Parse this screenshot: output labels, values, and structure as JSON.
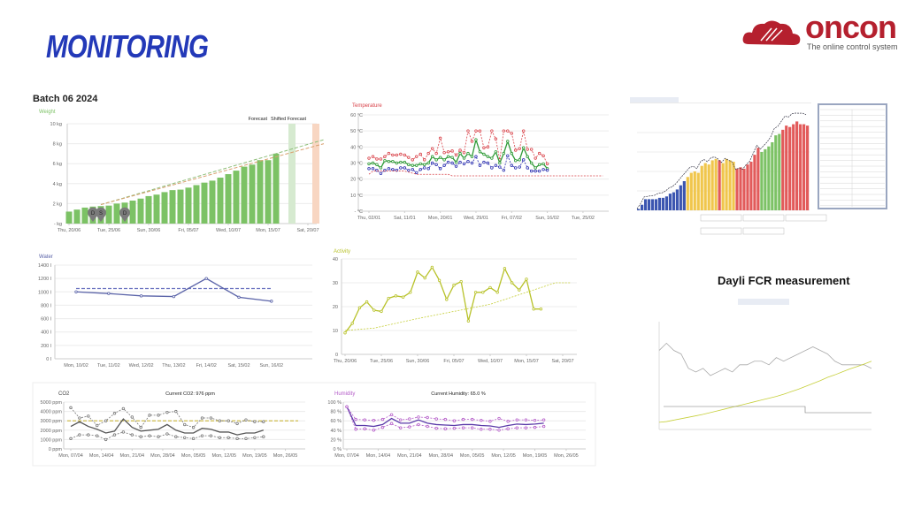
{
  "header": {
    "title": "MONITORING",
    "logo_text": "oncon",
    "logo_tagline": "The online control system",
    "brand_color": "#b5202e",
    "title_color": "#2339b8"
  },
  "batch_label": "Batch 06 2024",
  "fcr_heading": "Dayli FCR measurement",
  "chart_data": [
    {
      "id": "weight",
      "type": "bar",
      "title": "Weight",
      "ylim": [
        0,
        10
      ],
      "y_ticks": [
        "- kg",
        "2 kg",
        "4 kg",
        "6 kg",
        "8 kg",
        "10 kg"
      ],
      "x_ticks": [
        "Thu, 20/06",
        "Tue, 25/06",
        "Sun, 30/06",
        "Fri, 05/07",
        "Wed, 10/07",
        "Mon, 15/07",
        "Sat, 20/07"
      ],
      "x": [
        "20/06",
        "21/06",
        "22/06",
        "23/06",
        "24/06",
        "25/06",
        "26/06",
        "27/06",
        "28/06",
        "29/06",
        "30/06",
        "01/07",
        "02/07",
        "03/07",
        "04/07",
        "05/07",
        "06/07",
        "07/07",
        "08/07",
        "09/07",
        "10/07",
        "11/07",
        "12/07",
        "13/07",
        "14/07",
        "15/07",
        "16/07"
      ],
      "values": [
        1.2,
        1.4,
        1.6,
        1.7,
        1.75,
        1.8,
        2.0,
        2.1,
        2.3,
        2.5,
        2.75,
        2.9,
        3.15,
        3.35,
        3.4,
        3.6,
        3.85,
        4.1,
        4.3,
        4.6,
        4.95,
        5.3,
        5.7,
        5.9,
        6.35,
        6.35,
        7.0
      ],
      "forecast_lines": [
        {
          "name": "Forecast",
          "color": "#8fbf7a",
          "points": [
            [
              "24/06",
              1.9
            ],
            [
              "22/07",
              8.4
            ]
          ]
        },
        {
          "name": "Shifted Forecast",
          "color": "#d9a070",
          "points": [
            [
              "24/06",
              1.9
            ],
            [
              "22/07",
              8.0
            ]
          ]
        }
      ],
      "bands": [
        {
          "label": "Forecast",
          "date": "18/07",
          "color": "#d6ead0"
        },
        {
          "label": "Shifted Forecast",
          "date": "21/07",
          "color": "#f8d6c2"
        }
      ],
      "markers": [
        {
          "label": "D",
          "date": "23/06"
        },
        {
          "label": "S",
          "date": "24/06"
        },
        {
          "label": "D",
          "date": "27/06"
        }
      ],
      "color": "#7cc265"
    },
    {
      "id": "temperature",
      "type": "line",
      "title": "Temperature",
      "ylim": [
        0,
        60
      ],
      "y_ticks": [
        "- °C",
        "10 °C",
        "20 °C",
        "30 °C",
        "40 °C",
        "50 °C",
        "60 °C"
      ],
      "x_ticks": [
        "Thu, 02/01",
        "Sat, 11/01",
        "Mon, 20/01",
        "Wed, 29/01",
        "Fri, 07/02",
        "Sun, 16/02",
        "Tue, 25/02"
      ],
      "x": [
        "02/01",
        "03/01",
        "04/01",
        "05/01",
        "06/01",
        "07/01",
        "08/01",
        "09/01",
        "10/01",
        "11/01",
        "12/01",
        "13/01",
        "14/01",
        "15/01",
        "16/01",
        "17/01",
        "18/01",
        "19/01",
        "20/01",
        "21/01",
        "22/01",
        "23/01",
        "24/01",
        "25/01",
        "26/01",
        "27/01",
        "28/01",
        "29/01",
        "30/01",
        "31/01",
        "01/02",
        "02/02",
        "03/02",
        "04/02",
        "05/02",
        "06/02",
        "07/02",
        "08/02",
        "09/02",
        "10/02",
        "11/02",
        "12/02",
        "13/02",
        "14/02",
        "15/02",
        "16/02"
      ],
      "series": [
        {
          "color": "#d9434a",
          "dashed": true,
          "marker": true,
          "values": [
            33,
            34,
            32.5,
            32.5,
            34,
            36,
            35,
            35,
            35.5,
            35,
            33.5,
            32,
            34,
            35.5,
            32,
            36,
            39,
            36,
            45.5,
            36.5,
            37,
            37.5,
            35,
            38,
            36.5,
            50,
            43.5,
            50,
            50,
            39.5,
            40,
            50,
            45,
            32,
            50,
            50,
            48.5,
            38,
            39,
            50,
            38.5,
            38.5,
            33,
            36,
            34.5,
            29.5
          ]
        },
        {
          "color": "#2e9a36",
          "dashed": false,
          "marker": true,
          "values": [
            29.5,
            30,
            29,
            27,
            31.5,
            31,
            31,
            30,
            30.5,
            30.5,
            29,
            28.5,
            28.5,
            29.5,
            29,
            30,
            34,
            32,
            33.5,
            32,
            34,
            33.5,
            30.5,
            36,
            33,
            36,
            34,
            44.5,
            37,
            35.5,
            34,
            33,
            37,
            30,
            36,
            43.5,
            36,
            31.5,
            32,
            39.5,
            34,
            30,
            27,
            29,
            29.5,
            26.5
          ]
        },
        {
          "color": "#2b2fb0",
          "dashed": true,
          "marker": true,
          "values": [
            26.5,
            26.5,
            25.5,
            23.5,
            25.5,
            26.5,
            26,
            25.5,
            27,
            27,
            25.5,
            26,
            24,
            26,
            27,
            26.5,
            30,
            29,
            26.5,
            28.5,
            30.5,
            30,
            28,
            30.5,
            29.5,
            31,
            30,
            34,
            28.5,
            30.5,
            30,
            27,
            28.5,
            27.5,
            25.5,
            34.5,
            28.5,
            27,
            27.5,
            32,
            27,
            25,
            25,
            25,
            26,
            25.5
          ]
        },
        {
          "color": "#d9434a",
          "dashed": true,
          "marker": false,
          "points": [
            [
              "02/01",
              23
            ],
            [
              "03/01",
              25
            ],
            [
              "11/01",
              25
            ],
            [
              "14/01",
              23
            ],
            [
              "22/01",
              23
            ],
            [
              "23/01",
              22
            ],
            [
              "02/03",
              22
            ]
          ]
        }
      ]
    },
    {
      "id": "water",
      "type": "line",
      "title": "Water",
      "ylim": [
        0,
        1400
      ],
      "y_ticks": [
        "0 l",
        "200 l",
        "400 l",
        "600 l",
        "800 l",
        "1000 l",
        "1200 l",
        "1400 l"
      ],
      "categories": [
        "Mon, 10/02",
        "Tue, 11/02",
        "Wed, 12/02",
        "Thu, 13/02",
        "Fri, 14/02",
        "Sat, 15/02",
        "Sun, 16/02"
      ],
      "series": [
        {
          "color": "#5a63a8",
          "values": [
            1000,
            975,
            940,
            930,
            1200,
            920,
            860
          ]
        }
      ],
      "target": {
        "value": 1050,
        "color": "#6a72c0"
      }
    },
    {
      "id": "activity",
      "type": "line",
      "title": "Activity",
      "ylim": [
        0,
        40
      ],
      "y_ticks": [
        "0",
        "10",
        "20",
        "30",
        "40"
      ],
      "x_ticks": [
        "Thu, 20/06",
        "Tue, 25/06",
        "Sun, 30/06",
        "Fri, 05/07",
        "Wed, 10/07",
        "Mon, 15/07",
        "Sat, 20/07"
      ],
      "x": [
        "20/06",
        "21/06",
        "22/06",
        "23/06",
        "24/06",
        "25/06",
        "26/06",
        "27/06",
        "28/06",
        "29/06",
        "30/06",
        "01/07",
        "02/07",
        "03/07",
        "04/07",
        "05/07",
        "06/07",
        "07/07",
        "08/07",
        "09/07",
        "10/07",
        "11/07",
        "12/07",
        "13/07",
        "14/07",
        "15/07",
        "16/07",
        "17/07"
      ],
      "series": [
        {
          "color": "#b8c22a",
          "marker": true,
          "values": [
            9,
            13,
            19.5,
            22,
            18.5,
            18,
            23.5,
            24.5,
            24,
            26,
            34.5,
            32,
            36.5,
            31,
            23,
            29,
            30.5,
            14,
            26,
            26,
            28,
            26,
            36,
            30,
            27,
            31.5,
            19,
            19
          ]
        },
        {
          "color": "#c6cf3a",
          "dashed": true,
          "points": [
            [
              "20/06",
              10
            ],
            [
              "24/06",
              11
            ],
            [
              "30/06",
              15
            ],
            [
              "05/07",
              18
            ],
            [
              "10/07",
              21
            ],
            [
              "15/07",
              26
            ],
            [
              "19/07",
              30
            ],
            [
              "21/07",
              30
            ]
          ]
        }
      ]
    },
    {
      "id": "co2",
      "type": "line",
      "title": "CO2",
      "subtitle": "Current CO2: 976 ppm",
      "ylim": [
        0,
        5000
      ],
      "y_ticks": [
        "0 ppm",
        "1000 ppm",
        "2000 ppm",
        "3000 ppm",
        "4000 ppm",
        "5000 ppm"
      ],
      "x_ticks": [
        "Mon, 07/04",
        "Mon, 14/04",
        "Mon, 21/04",
        "Mon, 28/04",
        "Mon, 05/05",
        "Mon, 12/05",
        "Mon, 19/05",
        "Mon, 26/05"
      ],
      "x": [
        "07/04",
        "09/04",
        "11/04",
        "13/04",
        "15/04",
        "17/04",
        "19/04",
        "21/04",
        "23/04",
        "25/04",
        "27/04",
        "29/04",
        "01/05",
        "03/05",
        "05/05",
        "07/05",
        "09/05",
        "11/05",
        "13/05",
        "15/05",
        "17/05",
        "19/05",
        "21/05"
      ],
      "series": [
        {
          "color": "#777",
          "dashed": true,
          "marker": true,
          "values": [
            4400,
            3300,
            3500,
            2500,
            3000,
            3800,
            4300,
            3400,
            2300,
            3600,
            3600,
            3900,
            4000,
            2600,
            2300,
            3300,
            3300,
            3000,
            3000,
            2700,
            3100,
            2900,
            2900
          ]
        },
        {
          "color": "#555",
          "marker": false,
          "values": [
            2400,
            2900,
            2400,
            2100,
            1700,
            1900,
            3200,
            2300,
            1900,
            2000,
            2100,
            2600,
            2000,
            1700,
            1700,
            2200,
            2100,
            1800,
            1800,
            1500,
            1700,
            1700,
            2000
          ]
        },
        {
          "color": "#777",
          "dashed": true,
          "marker": true,
          "values": [
            1100,
            1500,
            1500,
            1400,
            1000,
            1500,
            1800,
            1500,
            1300,
            1400,
            1300,
            1600,
            1300,
            1200,
            1100,
            1400,
            1400,
            1200,
            1200,
            1100,
            1100,
            1200,
            1300
          ]
        }
      ],
      "target": {
        "value": 3000,
        "color": "#c9b63a"
      }
    },
    {
      "id": "humidity",
      "type": "line",
      "title": "Humidity",
      "subtitle": "Current Humidity: 65.0 %",
      "ylim": [
        0,
        100
      ],
      "y_ticks": [
        "0 %",
        "20 %",
        "40 %",
        "60 %",
        "80 %",
        "100 %"
      ],
      "x_ticks": [
        "Mon, 07/04",
        "Mon, 14/04",
        "Mon, 21/04",
        "Mon, 28/04",
        "Mon, 05/05",
        "Mon, 12/05",
        "Mon, 19/05",
        "Mon, 26/05"
      ],
      "x": [
        "07/04",
        "09/04",
        "11/04",
        "13/04",
        "15/04",
        "17/04",
        "19/04",
        "21/04",
        "23/04",
        "25/04",
        "27/04",
        "29/04",
        "01/05",
        "03/05",
        "05/05",
        "07/05",
        "09/05",
        "11/05",
        "13/05",
        "15/05",
        "17/05",
        "19/05",
        "21/05"
      ],
      "series": [
        {
          "color": "#b45cc8",
          "dashed": true,
          "marker": true,
          "values": [
            90,
            63,
            62,
            61,
            63,
            73,
            62,
            64,
            68,
            67,
            64,
            63,
            60,
            63,
            63,
            61,
            59,
            65,
            59,
            62,
            62,
            61,
            62
          ]
        },
        {
          "color": "#5a3aa8",
          "marker": false,
          "values": [
            90,
            50,
            50,
            48,
            52,
            65,
            55,
            55,
            62,
            55,
            52,
            51,
            50,
            52,
            52,
            50,
            49,
            46,
            50,
            53,
            52,
            53,
            55
          ]
        },
        {
          "color": "#b45cc8",
          "dashed": true,
          "marker": true,
          "values": [
            90,
            42,
            43,
            40,
            46,
            54,
            45,
            47,
            52,
            48,
            44,
            43,
            44,
            45,
            45,
            42,
            42,
            40,
            43,
            45,
            45,
            46,
            48
          ]
        }
      ]
    },
    {
      "id": "batch-thumb",
      "type": "bar",
      "values": [
        1,
        4,
        8,
        8,
        8,
        8,
        9,
        9,
        10,
        12,
        13,
        15,
        18,
        21,
        24,
        27,
        28,
        27,
        32,
        34,
        33,
        36,
        37,
        36,
        34,
        37,
        36,
        35,
        30,
        31,
        30,
        33,
        35,
        40,
        45,
        42,
        44,
        46,
        49,
        54,
        55,
        58,
        61,
        60,
        62,
        64,
        62,
        62,
        61
      ],
      "groups": [
        "#3b55b0",
        "#3b55b0",
        "#3b55b0",
        "#3b55b0",
        "#3b55b0",
        "#3b55b0",
        "#3b55b0",
        "#3b55b0",
        "#3b55b0",
        "#3b55b0",
        "#3b55b0",
        "#3b55b0",
        "#3b55b0",
        "#3b55b0",
        "#f0c64c",
        "#f0c64c",
        "#f0c64c",
        "#f0c64c",
        "#f0c64c",
        "#f0c64c",
        "#f0c64c",
        "#f0c64c",
        "#f0c64c",
        "#e25a5a",
        "#f0c64c",
        "#f0c64c",
        "#f0c64c",
        "#f0c64c",
        "#e25a5a",
        "#e25a5a",
        "#e25a5a",
        "#e25a5a",
        "#e25a5a",
        "#e25a5a",
        "#e25a5a",
        "#7cc265",
        "#7cc265",
        "#7cc265",
        "#7cc265",
        "#7cc265",
        "#7cc265",
        "#e25a5a",
        "#e25a5a",
        "#e25a5a",
        "#e25a5a",
        "#e25a5a",
        "#e25a5a",
        "#e25a5a",
        "#e25a5a"
      ],
      "ylim": [
        0,
        70
      ]
    },
    {
      "id": "fcr-thumb",
      "type": "line",
      "ylim": [
        0,
        3
      ],
      "series": [
        {
          "color": "#aaa",
          "values": [
            2.2,
            2.4,
            2.2,
            2.1,
            1.7,
            1.6,
            1.7,
            1.5,
            1.6,
            1.7,
            1.6,
            1.8,
            1.8,
            1.9,
            1.9,
            1.8,
            2.0,
            1.9,
            2.0,
            2.1,
            2.2,
            2.3,
            2.2,
            2.1,
            1.9,
            1.8,
            1.8,
            1.8,
            1.8,
            1.7
          ]
        },
        {
          "color": "#c6cf3a",
          "values": [
            0.2,
            0.22,
            0.26,
            0.3,
            0.34,
            0.38,
            0.42,
            0.47,
            0.52,
            0.57,
            0.62,
            0.67,
            0.72,
            0.77,
            0.82,
            0.87,
            0.92,
            0.98,
            1.05,
            1.12,
            1.2,
            1.28,
            1.36,
            1.45,
            1.52,
            1.6,
            1.68,
            1.75,
            1.82,
            1.9
          ]
        }
      ]
    }
  ]
}
